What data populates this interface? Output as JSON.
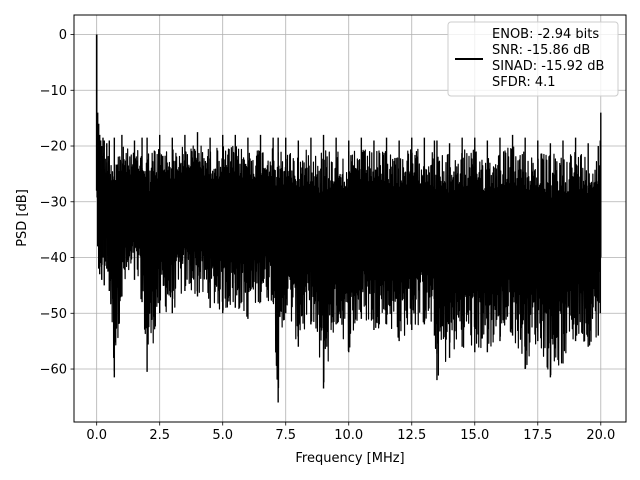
{
  "chart_data": {
    "type": "line",
    "title": "",
    "xlabel": "Frequency [MHz]",
    "ylabel": "PSD [dB]",
    "xlim": [
      -0.9,
      21.0
    ],
    "ylim": [
      -69.5,
      3.5
    ],
    "xticks": [
      0.0,
      2.5,
      5.0,
      7.5,
      10.0,
      12.5,
      15.0,
      17.5,
      20.0
    ],
    "xtick_labels": [
      "0.0",
      "2.5",
      "5.0",
      "7.5",
      "10.0",
      "12.5",
      "15.0",
      "17.5",
      "20.0"
    ],
    "yticks": [
      0,
      -10,
      -20,
      -30,
      -40,
      -50,
      -60
    ],
    "ytick_labels": [
      "0",
      "−10",
      "−20",
      "−30",
      "−40",
      "−50",
      "−60"
    ],
    "grid": true,
    "legend_position": "top-right",
    "series": [
      {
        "name": "ENOB: -2.94 bits\nSNR: -15.86 dB\nSINAD: -15.92 dB\nSFDR: 4.1",
        "legend_lines": [
          "ENOB: -2.94 bits",
          "SNR: -15.86 dB",
          "SINAD: -15.92 dB",
          "SFDR: 4.1"
        ],
        "color": "#000000",
        "x": [
          0.0,
          0.04,
          0.08,
          0.12,
          0.16,
          0.2,
          0.25,
          0.3,
          0.4,
          0.5,
          0.7,
          1.0,
          1.5,
          1.8,
          2.0,
          2.5,
          3.0,
          3.5,
          4.0,
          4.5,
          5.0,
          5.5,
          6.0,
          6.5,
          7.0,
          7.2,
          7.5,
          8.0,
          8.5,
          9.0,
          9.5,
          10.0,
          10.5,
          11.0,
          11.5,
          12.0,
          12.5,
          13.0,
          13.4,
          13.5,
          14.0,
          14.5,
          15.0,
          15.5,
          16.0,
          16.5,
          17.0,
          17.5,
          18.0,
          18.5,
          19.0,
          19.5,
          19.9,
          19.98,
          20.0
        ],
        "upper": [
          0.0,
          -14.0,
          -16.0,
          -18.0,
          -19.0,
          -20.0,
          -18.5,
          -19.0,
          -19.5,
          -19.0,
          -18.5,
          -18.0,
          -19.0,
          -18.5,
          -18.5,
          -18.0,
          -18.5,
          -18.0,
          -17.5,
          -18.5,
          -18.0,
          -18.0,
          -18.5,
          -18.0,
          -18.5,
          -18.5,
          -18.5,
          -19.0,
          -18.5,
          -18.0,
          -18.5,
          -19.0,
          -18.5,
          -19.0,
          -18.5,
          -19.0,
          -18.5,
          -18.5,
          -19.0,
          -19.0,
          -19.5,
          -18.5,
          -18.5,
          -19.0,
          -18.5,
          -18.0,
          -18.5,
          -19.0,
          -19.5,
          -19.0,
          -18.5,
          -19.5,
          -20.0,
          -19.0,
          -14.0
        ],
        "lower": [
          -28.0,
          -38.0,
          -42.0,
          -43.0,
          -41.0,
          -44.0,
          -40.0,
          -45.0,
          -42.0,
          -46.0,
          -61.5,
          -47.0,
          -44.0,
          -48.0,
          -60.5,
          -50.0,
          -50.0,
          -46.0,
          -47.0,
          -49.0,
          -50.0,
          -49.0,
          -51.0,
          -48.0,
          -48.0,
          -66.0,
          -50.0,
          -56.0,
          -52.0,
          -63.5,
          -52.0,
          -57.0,
          -51.0,
          -53.0,
          -52.0,
          -55.0,
          -53.0,
          -52.0,
          -54.0,
          -62.0,
          -58.0,
          -56.0,
          -57.0,
          -57.0,
          -55.0,
          -54.0,
          -60.0,
          -55.0,
          -61.5,
          -59.0,
          -55.0,
          -56.0,
          -54.0,
          -50.0,
          -40.0
        ]
      }
    ]
  }
}
